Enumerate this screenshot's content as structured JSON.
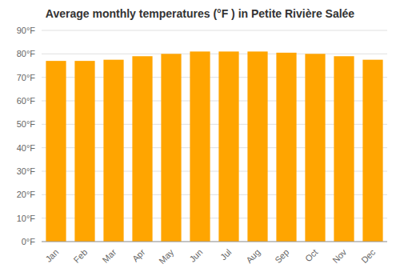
{
  "chart_data": {
    "type": "bar",
    "title": "Average monthly temperatures (°F ) in Petite Rivière Salée",
    "categories": [
      "Jan",
      "Feb",
      "Mar",
      "Apr",
      "May",
      "Jun",
      "Jul",
      "Aug",
      "Sep",
      "Oct",
      "Nov",
      "Dec"
    ],
    "values": [
      77.0,
      77.0,
      77.5,
      79.0,
      80.0,
      81.0,
      81.0,
      81.0,
      80.5,
      80.0,
      79.0,
      77.5
    ],
    "color": "#FFA500",
    "ylim": [
      0,
      90
    ],
    "yticks": [
      {
        "value": 0,
        "label": "0°F"
      },
      {
        "value": 10,
        "label": "10°F"
      },
      {
        "value": 20,
        "label": "20°F"
      },
      {
        "value": 30,
        "label": "30°F"
      },
      {
        "value": 40,
        "label": "40°F"
      },
      {
        "value": 50,
        "label": "50°F"
      },
      {
        "value": 60,
        "label": "60°F"
      },
      {
        "value": 70,
        "label": "70°F"
      },
      {
        "value": 80,
        "label": "80°F"
      },
      {
        "value": 90,
        "label": "90°F"
      }
    ],
    "grid": true
  }
}
